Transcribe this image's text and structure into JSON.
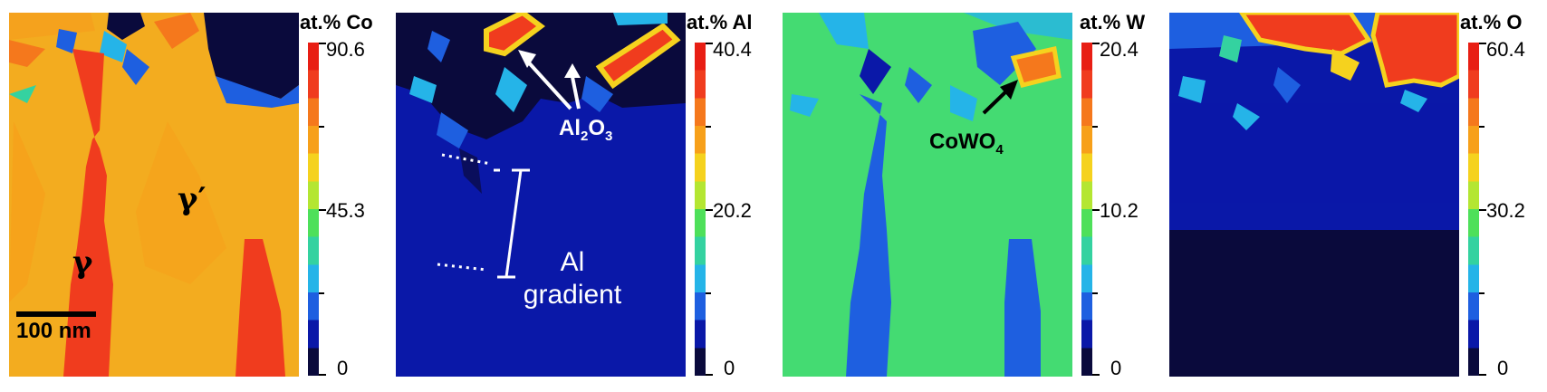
{
  "panels": [
    {
      "colorbar_title": "at.% Co",
      "ticks": {
        "max": "90.6",
        "mid": "45.3",
        "min": "0"
      },
      "labels": {
        "gamma": "γ",
        "gamma_prime": "γ′"
      },
      "scale_bar": "100 nm"
    },
    {
      "colorbar_title": "at.% Al",
      "ticks": {
        "max": "40.4",
        "mid": "20.2",
        "min": "0"
      },
      "labels": {
        "al2o3": "Al",
        "sub2": "2",
        "o": "O",
        "sub3": "3",
        "gradient_line1": "Al",
        "gradient_line2": "gradient"
      }
    },
    {
      "colorbar_title": "at.% W",
      "ticks": {
        "max": "20.4",
        "mid": "10.2",
        "min": "0"
      },
      "labels": {
        "cowo": "CoWO",
        "sub4": "4"
      }
    },
    {
      "colorbar_title": "at.% O",
      "ticks": {
        "max": "60.4",
        "mid": "30.2",
        "min": "0"
      }
    }
  ],
  "colors": {
    "scale": [
      "#0a0a3c",
      "#0a18a8",
      "#1e5fe0",
      "#25b4e8",
      "#34d2a0",
      "#4ee05a",
      "#b4e632",
      "#f5d21e",
      "#f7a01a",
      "#f5781c",
      "#f03c1e",
      "#e81e14"
    ]
  }
}
